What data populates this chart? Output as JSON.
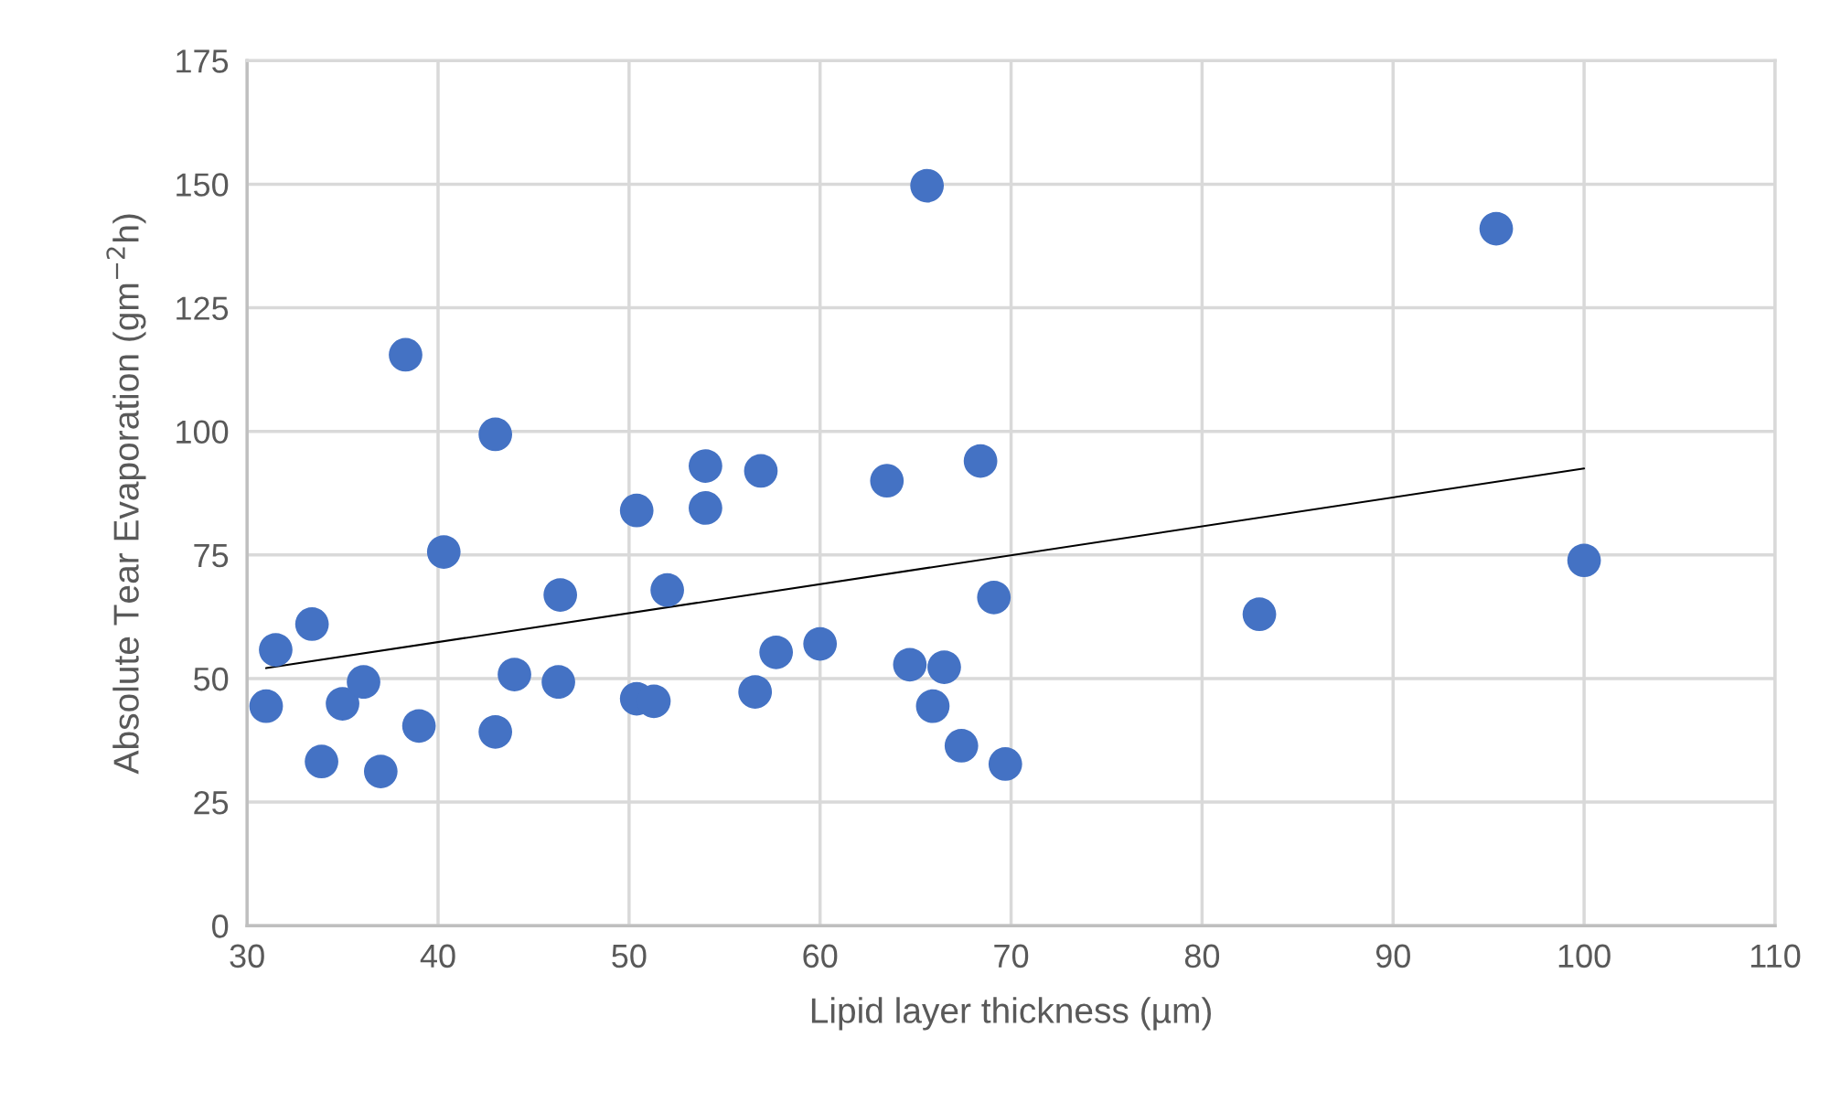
{
  "chart_data": {
    "type": "scatter",
    "xlabel": "Lipid layer thickness (µm)",
    "ylabel": "Absolute Tear Evaporation (gm$^{−2}$h)",
    "xlim": [
      30,
      110
    ],
    "xticks": [
      30,
      40,
      50,
      60,
      70,
      80,
      90,
      100,
      110
    ],
    "ylim": [
      0,
      175
    ],
    "yticks": [
      0,
      25,
      50,
      75,
      100,
      125,
      150,
      175
    ],
    "grid": true,
    "series": [
      {
        "marker": "circle",
        "color": "#4472c4",
        "x": [
          31.0,
          31.5,
          33.4,
          33.9,
          35.0,
          36.1,
          37.0,
          38.3,
          39.0,
          40.3,
          43.0,
          43.0,
          44.0,
          46.3,
          46.4,
          50.4,
          50.4,
          51.3,
          52.0,
          54.0,
          54.0,
          56.6,
          56.9,
          57.7,
          60.0,
          63.5,
          64.7,
          65.6,
          65.9,
          66.5,
          67.4,
          68.4,
          69.1,
          69.7,
          83.0,
          95.4,
          100.0
        ],
        "values": [
          44.4,
          55.8,
          61,
          33.2,
          44.9,
          49.3,
          31.2,
          115.5,
          40.4,
          75.6,
          99.4,
          39.2,
          50.8,
          49.3,
          66.9,
          45.9,
          84.0,
          45.4,
          67.9,
          93.0,
          84.5,
          47.3,
          92.0,
          55.3,
          57.0,
          90.0,
          52.8,
          149.7,
          44.4,
          52.3,
          36.4,
          94.0,
          66.4,
          32.7,
          63.0,
          141.0,
          73.9
        ]
      },
      {
        "type": "line",
        "color": "#000000",
        "x": [
          31,
          100
        ],
        "values": [
          52.1,
          92.5
        ]
      }
    ]
  }
}
